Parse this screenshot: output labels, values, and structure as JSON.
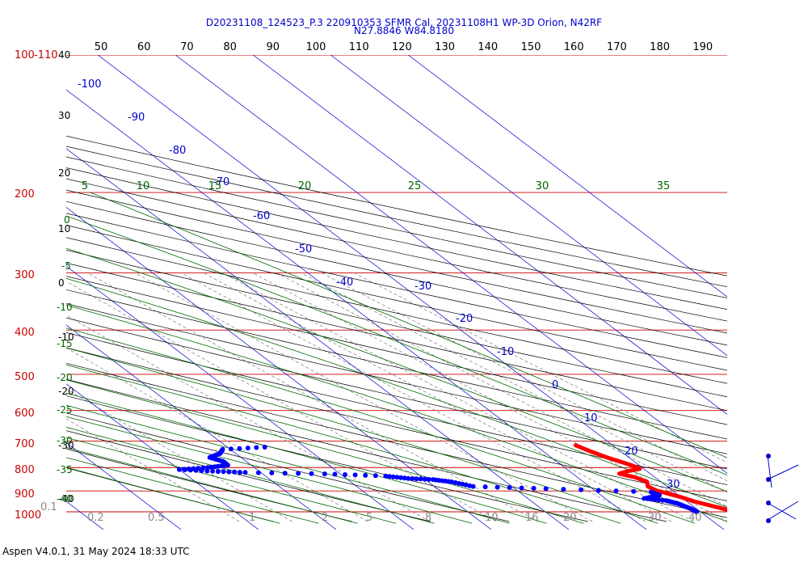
{
  "title_line1": "D20231108_124523_P.3 220910353 SFMR Cal, 20231108H1 WP-3D Orion, N42RF",
  "title_line2": "N27.8846 W84.8180",
  "footer": "Aspen V4.0.1, 31 May 2024  18:33 UTC",
  "colors": {
    "isobar": "#cc0000",
    "isotherm": "#0000cc",
    "dry_adiabat": "#000000",
    "moist_adiabat": "#006600",
    "mixing_ratio": "#888888",
    "temperature_trace": "#ff0000",
    "dewpoint_trace": "#0000ff"
  },
  "chart_data": {
    "type": "skew-t log-p diagram",
    "pressure_labels": [
      "100",
      "-110",
      "200",
      "300",
      "400",
      "500",
      "600",
      "700",
      "800",
      "900",
      "1000"
    ],
    "potential_temp_labels_top": [
      "50",
      "60",
      "70",
      "80",
      "90",
      "100",
      "110",
      "120",
      "130",
      "140",
      "150",
      "160",
      "170",
      "180",
      "190"
    ],
    "left_temp_labels": [
      "40",
      "30",
      "20",
      "10",
      "0",
      "-10",
      "-20",
      "-30",
      "-40"
    ],
    "isotherm_labels": [
      "-100",
      "-90",
      "-80",
      "-70",
      "-60",
      "-50",
      "-40",
      "-30",
      "-20",
      "-10",
      "0",
      "10",
      "20",
      "30"
    ],
    "moist_adiabat_labels": [
      "5",
      "10",
      "15",
      "20",
      "25",
      "30",
      "35"
    ],
    "moist_left_labels": [
      "0",
      "-5",
      "-10",
      "-15",
      "-20",
      "-25",
      "-30",
      "-35",
      "-40"
    ],
    "mixing_ratio_labels": [
      "0.1",
      "0.2",
      "0.5",
      "1",
      "2",
      "5",
      "8",
      "10",
      "16",
      "20",
      "30",
      "40"
    ],
    "temperature_profile": [
      {
        "p": 1015,
        "t": 26.0
      },
      {
        "p": 1000,
        "t": 24.5
      },
      {
        "p": 975,
        "t": 22.8
      },
      {
        "p": 950,
        "t": 21.0
      },
      {
        "p": 925,
        "t": 19.8
      },
      {
        "p": 900,
        "t": 18.0
      },
      {
        "p": 880,
        "t": 17.5
      },
      {
        "p": 860,
        "t": 18.2
      },
      {
        "p": 840,
        "t": 17.4
      },
      {
        "p": 825,
        "t": 16.0
      },
      {
        "p": 815,
        "t": 17.5
      },
      {
        "p": 805,
        "t": 19.5
      },
      {
        "p": 790,
        "t": 19.0
      },
      {
        "p": 760,
        "t": 17.2
      },
      {
        "p": 735,
        "t": 16.0
      },
      {
        "p": 715,
        "t": 15.2
      }
    ],
    "dewpoint_profile": [
      {
        "p": 1000,
        "t": 19.5
      },
      {
        "p": 985,
        "t": 19.3
      },
      {
        "p": 960,
        "t": 18.5
      },
      {
        "p": 945,
        "t": 17.5
      },
      {
        "p": 935,
        "t": 15.0
      },
      {
        "p": 920,
        "t": 17.5
      },
      {
        "p": 905,
        "t": 17.0
      },
      {
        "p": 890,
        "t": 4.0
      },
      {
        "p": 880,
        "t": -5.0
      },
      {
        "p": 860,
        "t": -7.0
      },
      {
        "p": 850,
        "t": -9.0
      },
      {
        "p": 845,
        "t": -12.0
      },
      {
        "p": 835,
        "t": -14.5
      },
      {
        "p": 826,
        "t": -22.0
      },
      {
        "p": 820,
        "t": -32.0
      },
      {
        "p": 815,
        "t": -36.0
      },
      {
        "p": 808,
        "t": -40.0
      },
      {
        "p": 800,
        "t": -36.0
      },
      {
        "p": 790,
        "t": -33.0
      },
      {
        "p": 775,
        "t": -33.0
      },
      {
        "p": 760,
        "t": -34.0
      },
      {
        "p": 745,
        "t": -32.0
      },
      {
        "p": 730,
        "t": -31.0
      },
      {
        "p": 720,
        "t": -24.0
      }
    ]
  }
}
